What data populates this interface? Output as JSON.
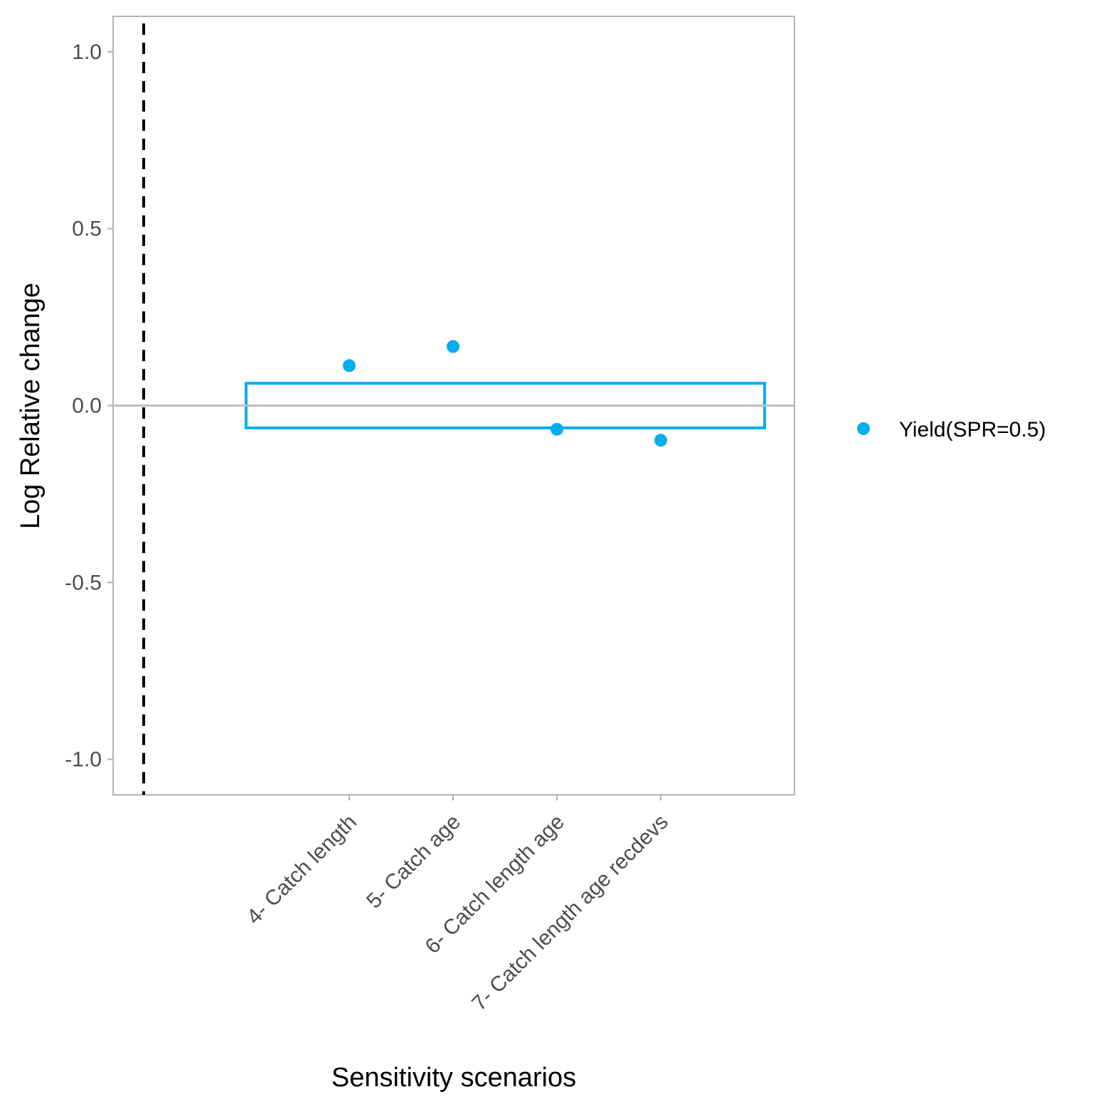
{
  "chart_data": {
    "type": "scatter",
    "title": "",
    "xlabel": "Sensitivity scenarios",
    "ylabel": "Log Relative change",
    "categories": [
      "4- Catch length",
      "5- Catch age",
      "6- Catch length age",
      "7- Catch length age recdevs"
    ],
    "ylim": [
      -1.1,
      1.1
    ],
    "yticks": [
      {
        "value": 1.0,
        "label": "1.0"
      },
      {
        "value": 0.5,
        "label": "0.5"
      },
      {
        "value": 0.0,
        "label": "0.0"
      },
      {
        "value": -0.5,
        "label": "-0.5"
      },
      {
        "value": -1.0,
        "label": "-1.0"
      }
    ],
    "series": [
      {
        "name": "Yield(SPR=0.5)",
        "color": "#00AEEF",
        "values": [
          0.113,
          0.167,
          -0.067,
          -0.098
        ]
      }
    ],
    "reference_band": {
      "lower": -0.063,
      "upper": 0.063,
      "color": "#00AEEF"
    },
    "zero_line_color": "#BEBEBE",
    "dashed_vline_color": "#000000",
    "grid": false,
    "legend": {
      "position": "right",
      "labels": [
        "Yield(SPR=0.5)"
      ]
    }
  }
}
